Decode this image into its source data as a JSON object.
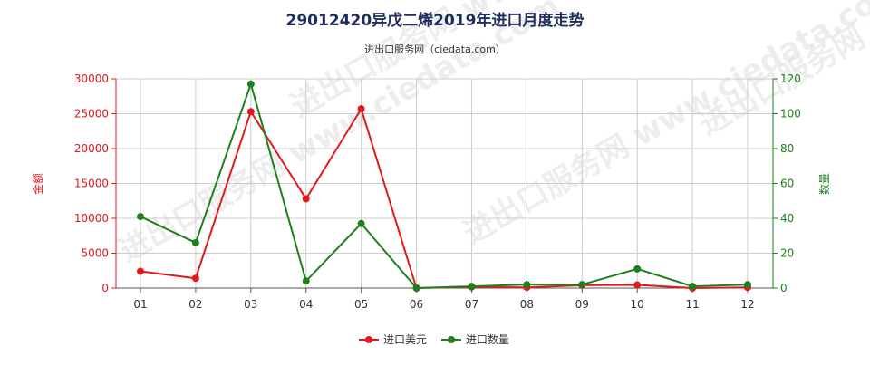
{
  "title": "29012420异戊二烯2019年进口月度走势",
  "subtitle": "进出口服务网（ciedata.com）",
  "watermark": "进出口服务网 www.ciedata.com",
  "colors": {
    "amount": "#e0191b",
    "quantity": "#1f7f1f",
    "grid": "#cccccc"
  },
  "chart_data": {
    "type": "line",
    "categories": [
      "01",
      "02",
      "03",
      "04",
      "05",
      "06",
      "07",
      "08",
      "09",
      "10",
      "11",
      "12"
    ],
    "y_left": {
      "label": "金额",
      "ylim": [
        0,
        30000
      ],
      "ticks": [
        0,
        5000,
        10000,
        15000,
        20000,
        25000,
        30000
      ]
    },
    "y_right": {
      "label": "数量",
      "ylim": [
        0,
        120
      ],
      "ticks": [
        0,
        20,
        40,
        60,
        80,
        100,
        120
      ]
    },
    "grid": true,
    "legend_position": "bottom",
    "series": [
      {
        "name": "进口美元",
        "axis": "left",
        "color": "#e0191b",
        "values": [
          2400,
          1400,
          25300,
          12800,
          25700,
          0,
          150,
          100,
          400,
          450,
          0,
          100
        ]
      },
      {
        "name": "进口数量",
        "axis": "right",
        "color": "#1f7f1f",
        "values": [
          41,
          26,
          117,
          4,
          37,
          0,
          1,
          2,
          2,
          11,
          1,
          2
        ]
      }
    ]
  }
}
